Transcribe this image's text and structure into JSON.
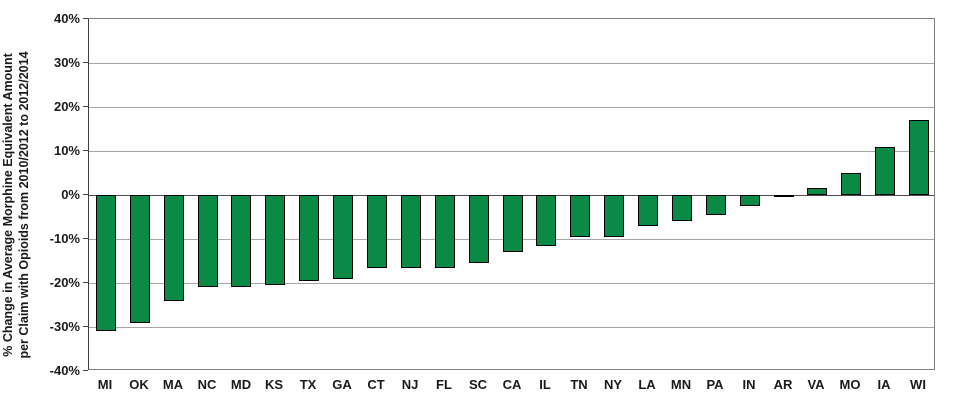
{
  "chart_data": {
    "type": "bar",
    "title": "",
    "ylabel": "% Change in Average Morphine Equivalent Amount per Claim with Opioids from 2010/2012 to 2012/2014",
    "ylabel_lines": [
      "% Change in Average Morphine Equivalent Amount",
      "per Claim with Opioids from 2010/2012  to 2012/2014"
    ],
    "xlabel": "",
    "categories": [
      "MI",
      "OK",
      "MA",
      "NC",
      "MD",
      "KS",
      "TX",
      "GA",
      "CT",
      "NJ",
      "FL",
      "SC",
      "CA",
      "IL",
      "TN",
      "NY",
      "LA",
      "MN",
      "PA",
      "IN",
      "AR",
      "VA",
      "MO",
      "IA",
      "WI"
    ],
    "values": [
      -31,
      -29,
      -24,
      -21,
      -21,
      -20.5,
      -19.5,
      -19,
      -16.5,
      -16.5,
      -16.5,
      -15.5,
      -13,
      -11.5,
      -9.5,
      -9.5,
      -7,
      -6,
      -4.5,
      -2.5,
      -0.5,
      1.5,
      5,
      11,
      17
    ],
    "ylim": [
      -40,
      40
    ],
    "ytick_step": 10,
    "ytick_labels": [
      "40%",
      "30%",
      "20%",
      "10%",
      "0%",
      "-10%",
      "-20%",
      "-30%",
      "-40%"
    ],
    "grid": true,
    "legend": null,
    "colors": {
      "bar_fill": "#0b8a46",
      "bar_border": "#000000",
      "gridline": "#a6a6a6",
      "zero_line": "#4d4d4d",
      "axis_line": "#3f3f3f",
      "plot_border": "#808080",
      "text": "#1a1a1a"
    }
  }
}
